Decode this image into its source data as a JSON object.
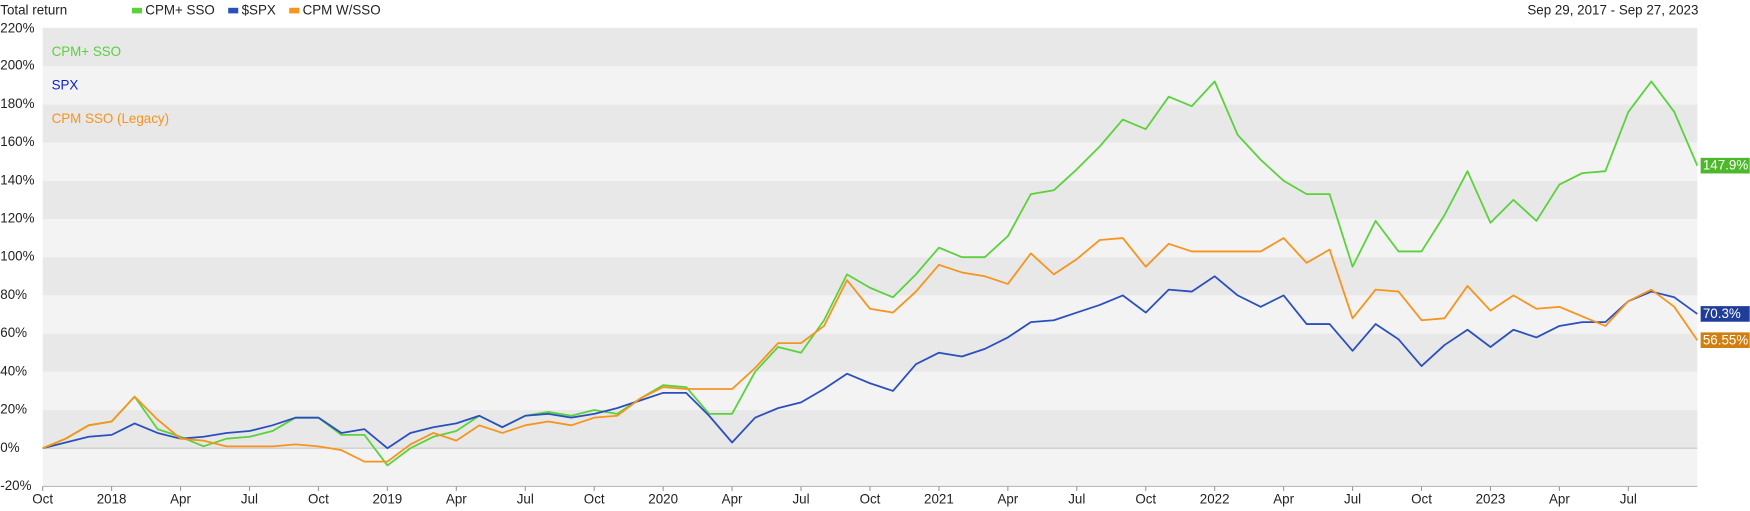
{
  "chart_data": {
    "type": "line",
    "title": "Total return",
    "subtitle": "Sep 29, 2017 - Sep 27, 2023",
    "annotations": [
      "CPM+ SSO",
      "SPX",
      "CPM SSO (Legacy)"
    ],
    "categories": [
      "Oct",
      null,
      null,
      "2018",
      null,
      null,
      "Apr",
      null,
      null,
      "Jul",
      null,
      null,
      "Oct",
      null,
      null,
      "2019",
      null,
      null,
      "Apr",
      null,
      null,
      "Jul",
      null,
      null,
      "Oct",
      null,
      null,
      "2020",
      null,
      null,
      "Apr",
      null,
      null,
      "Jul",
      null,
      null,
      "Oct",
      null,
      null,
      "2021",
      null,
      null,
      "Apr",
      null,
      null,
      "Jul",
      null,
      null,
      "Oct",
      null,
      null,
      "2022",
      null,
      null,
      "Apr",
      null,
      null,
      "Jul",
      null,
      null,
      "Oct",
      null,
      null,
      "2023",
      null,
      null,
      "Apr",
      null,
      null,
      "Jul",
      null,
      null,
      null
    ],
    "series": [
      {
        "name": "CPM+ SSO",
        "color": "#5ad23c",
        "values": [
          0,
          5,
          12,
          14,
          27,
          10,
          6,
          1,
          5,
          6,
          9,
          16,
          16,
          7,
          7,
          -9,
          0,
          6,
          9,
          17,
          11,
          17,
          19,
          17,
          20,
          18,
          26,
          33,
          32,
          18,
          18,
          40,
          53,
          50,
          67,
          91,
          84,
          79,
          91,
          105,
          100,
          100,
          111,
          133,
          135,
          146,
          158,
          172,
          167,
          184,
          179,
          192,
          164,
          151,
          140,
          133,
          133,
          95,
          119,
          103,
          103,
          122,
          145,
          118,
          130,
          119,
          138,
          144,
          145,
          176,
          192,
          176,
          147.9
        ],
        "value_labels": [
          null,
          null,
          null,
          null,
          null,
          null,
          null,
          null,
          null,
          null,
          null,
          null,
          null,
          null,
          null,
          null,
          null,
          null,
          null,
          null,
          null,
          null,
          null,
          null,
          null,
          null,
          null,
          null,
          null,
          null,
          null,
          null,
          null,
          null,
          null,
          null,
          null,
          null,
          null,
          null,
          null,
          null,
          null,
          null,
          null,
          null,
          null,
          null,
          null,
          null,
          null,
          null,
          null,
          null,
          null,
          null,
          null,
          null,
          null,
          null,
          null,
          null,
          null,
          null,
          null,
          null,
          null,
          null,
          null,
          null,
          null,
          null,
          "147.9%"
        ],
        "label_color": "#4cb82a"
      },
      {
        "name": "$SPX",
        "color": "#2a4fbf",
        "values": [
          0,
          3,
          6,
          7,
          13,
          8,
          5,
          6,
          8,
          9,
          12,
          16,
          16,
          8,
          10,
          0,
          8,
          11,
          13,
          17,
          11,
          17,
          18,
          16,
          18,
          21,
          25,
          29,
          29,
          17,
          3,
          16,
          21,
          24,
          31,
          39,
          34,
          30,
          44,
          50,
          48,
          52,
          58,
          66,
          67,
          71,
          75,
          80,
          71,
          83,
          82,
          90,
          80,
          74,
          80,
          65,
          65,
          51,
          65,
          57,
          43,
          54,
          62,
          53,
          62,
          58,
          64,
          66,
          66,
          77,
          82,
          79,
          70.3
        ],
        "value_labels": [
          null,
          null,
          null,
          null,
          null,
          null,
          null,
          null,
          null,
          null,
          null,
          null,
          null,
          null,
          null,
          null,
          null,
          null,
          null,
          null,
          null,
          null,
          null,
          null,
          null,
          null,
          null,
          null,
          null,
          null,
          null,
          null,
          null,
          null,
          null,
          null,
          null,
          null,
          null,
          null,
          null,
          null,
          null,
          null,
          null,
          null,
          null,
          null,
          null,
          null,
          null,
          null,
          null,
          null,
          null,
          null,
          null,
          null,
          null,
          null,
          null,
          null,
          null,
          null,
          null,
          null,
          null,
          null,
          null,
          null,
          null,
          null,
          "70.3%"
        ],
        "label_color": "#1f3d99"
      },
      {
        "name": "CPM W/SSO",
        "color": "#f7941d",
        "values": [
          0,
          5,
          12,
          14,
          27,
          15,
          5,
          4,
          1,
          1,
          1,
          2,
          1,
          -1,
          -7,
          -7,
          2,
          8,
          4,
          12,
          8,
          12,
          14,
          12,
          16,
          17,
          26,
          32,
          31,
          31,
          31,
          42,
          55,
          55,
          64,
          88,
          73,
          71,
          82,
          96,
          92,
          90,
          86,
          102,
          91,
          99,
          109,
          110,
          95,
          107,
          103,
          103,
          103,
          103,
          110,
          97,
          104,
          68,
          83,
          82,
          67,
          68,
          85,
          72,
          80,
          73,
          74,
          69,
          64,
          77,
          83,
          74,
          56.55
        ],
        "value_labels": [
          null,
          null,
          null,
          null,
          null,
          null,
          null,
          null,
          null,
          null,
          null,
          null,
          null,
          null,
          null,
          null,
          null,
          null,
          null,
          null,
          null,
          null,
          null,
          null,
          null,
          null,
          null,
          null,
          null,
          null,
          null,
          null,
          null,
          null,
          null,
          null,
          null,
          null,
          null,
          null,
          null,
          null,
          null,
          null,
          null,
          null,
          null,
          null,
          null,
          null,
          null,
          null,
          null,
          null,
          null,
          null,
          null,
          null,
          null,
          null,
          null,
          null,
          null,
          null,
          null,
          null,
          null,
          null,
          null,
          null,
          null,
          null,
          "56.55%"
        ],
        "label_color": "#d07f10"
      }
    ],
    "ylim": [
      -20,
      220
    ],
    "yticks": [
      {
        "value": -20,
        "label": "-20%"
      },
      {
        "value": 0,
        "label": "0%"
      },
      {
        "value": 20,
        "label": "20%"
      },
      {
        "value": 40,
        "label": "40%"
      },
      {
        "value": 60,
        "label": "60%"
      },
      {
        "value": 80,
        "label": "80%"
      },
      {
        "value": 100,
        "label": "100%"
      },
      {
        "value": 120,
        "label": "120%"
      },
      {
        "value": 140,
        "label": "140%"
      },
      {
        "value": 160,
        "label": "160%"
      },
      {
        "value": 180,
        "label": "180%"
      },
      {
        "value": 200,
        "label": "200%"
      },
      {
        "value": 220,
        "label": "220%"
      }
    ],
    "grid": true
  }
}
